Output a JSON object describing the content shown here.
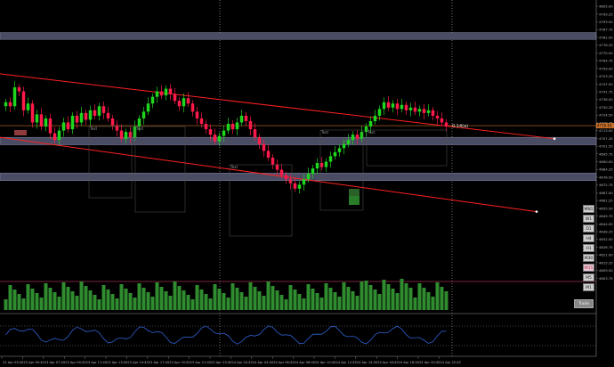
{
  "chart_data": {
    "type": "candlestick",
    "title": "",
    "price_range": [
      4600,
      4807
    ],
    "y_ticks": [
      4805.0,
      4799.25,
      4793.5,
      4787.75,
      4782.0,
      4776.25,
      4770.5,
      4764.75,
      4759.0,
      4753.25,
      4747.5,
      4741.75,
      4736.0,
      4730.25,
      4724.5,
      4718.75,
      4713.0,
      4707.25,
      4701.5,
      4695.75,
      4690.0,
      4684.25,
      4678.5,
      4672.75,
      4667.0,
      4661.25,
      4655.5,
      4649.75,
      4644.0,
      4638.25,
      4632.5,
      4626.75,
      4621.0,
      4615.25,
      4609.5,
      4603.75
    ],
    "y_tick_labels": [
      "4805.00",
      "4799.25",
      "4793.50",
      "4787.75",
      "4782.00",
      "4776.25",
      "4770.50",
      "4764.75",
      "4759.00",
      "4753.25",
      "4747.50",
      "4741.75",
      "4736.00",
      "4730.25",
      "4724.50",
      "4718.75",
      "4713.00",
      "4707.25",
      "4701.50",
      "4695.75",
      "4690.00",
      "4684.25",
      "4678.50",
      "4672.75",
      "4667.00",
      "4661.25",
      "4655.50",
      "4649.75",
      "4644.00",
      "4638.25",
      "4632.50",
      "4626.75",
      "4621.00",
      "4615.25",
      "4609.50",
      "4603.75"
    ],
    "x_labels": [
      "23 Apr 03:45",
      "23 Apr 05:45",
      "23 Apr 07:45",
      "23 Apr 09:45",
      "23 Apr 11:45",
      "23 Apr 13:45",
      "23 Apr 15:45",
      "23 Apr 17:45",
      "23 Apr 19:45",
      "23 Apr 21:45",
      "23 Apr 23:45",
      "24 Apr 02:45",
      "24 Apr 04:45",
      "24 Apr 06:45",
      "24 Apr 08:45",
      "24 Apr 10:45",
      "24 Apr 12:45",
      "24 Apr 14:45",
      "24 Apr 16:45",
      "24 Apr 18:45",
      "24 Apr 20:45",
      "24 Apr 22:45"
    ],
    "current_price": 4716.63,
    "current_price_label": "4716.63",
    "price_line_label": "0.14(a)",
    "zones": [
      {
        "from": 4785.5,
        "to": 4780.5
      },
      {
        "from": 4708.0,
        "to": 4702.5
      },
      {
        "from": 4681.5,
        "to": 4676.0
      }
    ],
    "trendlines": [
      {
        "x0": 0.0,
        "y0": 4755,
        "x1": 0.93,
        "y1": 4707
      },
      {
        "x0": 0.0,
        "y0": 4708,
        "x1": 0.9,
        "y1": 4653
      }
    ],
    "candles": [
      4734,
      4731,
      4745,
      4742,
      4728,
      4733,
      4719,
      4725,
      4716,
      4722,
      4711,
      4706,
      4713,
      4719,
      4714,
      4724,
      4719,
      4726,
      4721,
      4728,
      4724,
      4731,
      4726,
      4722,
      4717,
      4713,
      4707,
      4712,
      4708,
      4716,
      4722,
      4727,
      4733,
      4738,
      4742,
      4739,
      4744,
      4740,
      4735,
      4731,
      4737,
      4733,
      4727,
      4722,
      4718,
      4714,
      4710,
      4705,
      4709,
      4713,
      4718,
      4714,
      4719,
      4724,
      4720,
      4714,
      4708,
      4703,
      4698,
      4693,
      4688,
      4684,
      4680,
      4677,
      4674,
      4670,
      4673,
      4677,
      4681,
      4685,
      4689,
      4686,
      4690,
      4694,
      4697,
      4700,
      4703,
      4706,
      4710,
      4707,
      4712,
      4716,
      4720,
      4724,
      4729,
      4734,
      4730,
      4733,
      4729,
      4732,
      4728,
      4730,
      4727,
      4729,
      4726,
      4728,
      4724,
      4722,
      4719,
      4716
    ],
    "volume_label": "",
    "oscillator_levels": [
      100,
      70,
      30,
      0
    ]
  },
  "text_labels": [
    "Text",
    "Text",
    "Text",
    "Text",
    "Text"
  ],
  "timeframes": [
    "MN1",
    "W1",
    "D1",
    "H4",
    "H1",
    "M30",
    "M15",
    "M5",
    "M1"
  ],
  "active_timeframe": "M15",
  "ticket_button": "Trade"
}
